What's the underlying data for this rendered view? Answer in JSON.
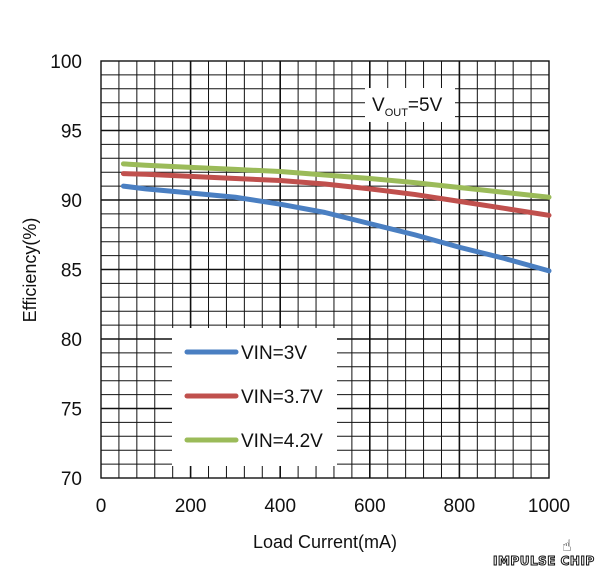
{
  "chart_data": {
    "type": "line",
    "title": "",
    "xlabel": "Load Current(mA)",
    "ylabel": "Efficiency(%)",
    "xlim": [
      0,
      1000
    ],
    "ylim": [
      70,
      100
    ],
    "xticks": [
      "0",
      "200",
      "400",
      "600",
      "800",
      "1000"
    ],
    "yticks": [
      "100",
      "95",
      "90",
      "85",
      "80",
      "75",
      "70"
    ],
    "grid": true,
    "legend_position": "bottom-left",
    "annotation": {
      "main": "V",
      "sub": "OUT",
      "tail": "=5V"
    },
    "series": [
      {
        "name": "VIN=3V",
        "color": "#4a7fc2",
        "x": [
          50,
          100,
          200,
          300,
          400,
          500,
          600,
          700,
          800,
          900,
          1000
        ],
        "y": [
          91.0,
          90.8,
          90.5,
          90.2,
          89.7,
          89.1,
          88.3,
          87.5,
          86.6,
          85.8,
          84.9
        ]
      },
      {
        "name": "VIN=3.7V",
        "color": "#c0504d",
        "x": [
          50,
          100,
          200,
          300,
          400,
          500,
          600,
          700,
          800,
          900,
          1000
        ],
        "y": [
          91.9,
          91.85,
          91.7,
          91.55,
          91.4,
          91.15,
          90.8,
          90.4,
          89.9,
          89.4,
          88.9
        ]
      },
      {
        "name": "VIN=4.2V",
        "color": "#9bbb59",
        "x": [
          50,
          100,
          200,
          300,
          400,
          500,
          600,
          700,
          800,
          900,
          1000
        ],
        "y": [
          92.6,
          92.5,
          92.35,
          92.2,
          92.05,
          91.8,
          91.55,
          91.25,
          90.9,
          90.55,
          90.2
        ]
      }
    ]
  },
  "watermark": {
    "text": "IMPULSE CHIP",
    "icon": "hand-icon"
  }
}
